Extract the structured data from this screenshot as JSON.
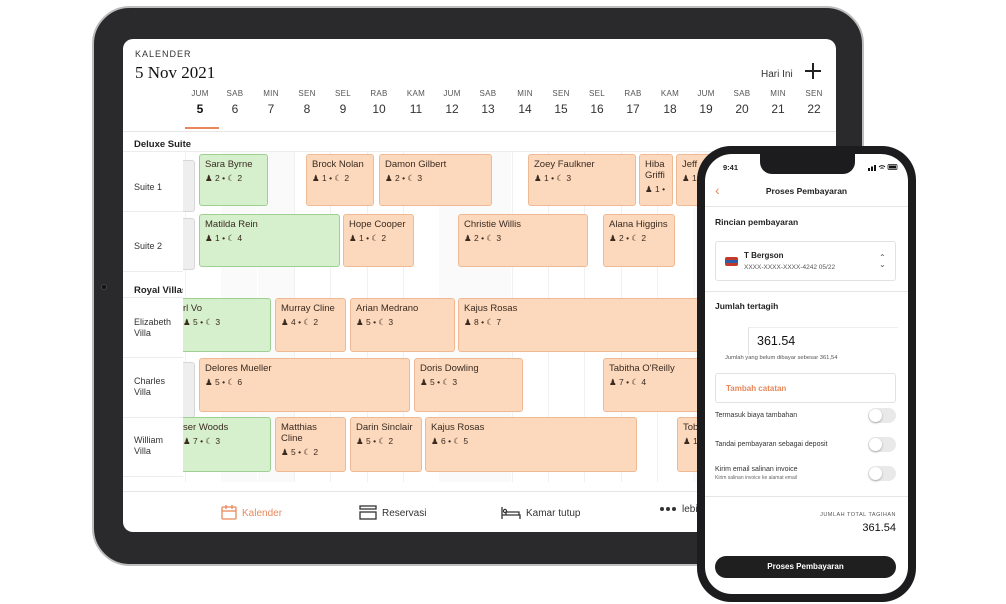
{
  "calendar": {
    "label": "KALENDER",
    "date": "5 Nov 2021",
    "today_button": "Hari Ini",
    "days": [
      {
        "dow": "JUM",
        "num": "5"
      },
      {
        "dow": "SAB",
        "num": "6"
      },
      {
        "dow": "MIN",
        "num": "7"
      },
      {
        "dow": "SEN",
        "num": "8"
      },
      {
        "dow": "SEL",
        "num": "9"
      },
      {
        "dow": "RAB",
        "num": "10"
      },
      {
        "dow": "KAM",
        "num": "11"
      },
      {
        "dow": "JUM",
        "num": "12"
      },
      {
        "dow": "SAB",
        "num": "13"
      },
      {
        "dow": "MIN",
        "num": "14"
      },
      {
        "dow": "SEN",
        "num": "15"
      },
      {
        "dow": "SEL",
        "num": "16"
      },
      {
        "dow": "RAB",
        "num": "17"
      },
      {
        "dow": "KAM",
        "num": "18"
      },
      {
        "dow": "JUM",
        "num": "19"
      },
      {
        "dow": "SAB",
        "num": "20"
      },
      {
        "dow": "MIN",
        "num": "21"
      },
      {
        "dow": "SEN",
        "num": "22"
      }
    ],
    "groups": [
      "Deluxe Suite",
      "Royal Villas"
    ],
    "rooms": [
      "Suite 1",
      "Suite 2",
      "Elizabeth Villa",
      "Charles Villa",
      "William Villa"
    ],
    "bookings": [
      {
        "name": "Sara Byrne",
        "guests": "2",
        "nights": "2"
      },
      {
        "name": "Brock Nolan",
        "guests": "1",
        "nights": "2"
      },
      {
        "name": "Damon Gilbert",
        "guests": "2",
        "nights": "3"
      },
      {
        "name": "Zoey Faulkner",
        "guests": "1",
        "nights": "3"
      },
      {
        "name": "Hiba Griffi",
        "guests": "1",
        "nights": ""
      },
      {
        "name": "Jeff",
        "guests": "1",
        "nights": ""
      },
      {
        "name": "Matilda Rein",
        "guests": "1",
        "nights": "4"
      },
      {
        "name": "Hope Cooper",
        "guests": "1",
        "nights": "2"
      },
      {
        "name": "Christie Willis",
        "guests": "2",
        "nights": "3"
      },
      {
        "name": "Alana Higgins",
        "guests": "2",
        "nights": "2"
      },
      {
        "name": "rl Vo",
        "guests": "5",
        "nights": "3"
      },
      {
        "name": "Murray Cline",
        "guests": "4",
        "nights": "2"
      },
      {
        "name": "Arian Medrano",
        "guests": "5",
        "nights": "3"
      },
      {
        "name": "Kajus Rosas",
        "guests": "8",
        "nights": "7"
      },
      {
        "name": "Delores Mueller",
        "guests": "5",
        "nights": "6"
      },
      {
        "name": "Doris Dowling",
        "guests": "5",
        "nights": "3"
      },
      {
        "name": "Tabitha O'Reilly",
        "guests": "7",
        "nights": "4"
      },
      {
        "name": "ser Woods",
        "guests": "7",
        "nights": "3"
      },
      {
        "name": "Matthias Cline",
        "guests": "5",
        "nights": "2"
      },
      {
        "name": "Darin Sinclair",
        "guests": "5",
        "nights": "2"
      },
      {
        "name": "Kajus Rosas",
        "guests": "6",
        "nights": "5"
      },
      {
        "name": "Tob",
        "guests": "1",
        "nights": ""
      }
    ]
  },
  "nav": {
    "calendar": "Kalender",
    "reservations": "Reservasi",
    "closed_rooms": "Kamar tutup",
    "more": "lebi"
  },
  "phone": {
    "time": "9:41",
    "title": "Proses Pembayaran",
    "payment_details": "Rincian pembayaran",
    "card_name": "T Bergson",
    "card_number": "XXXX-XXXX-XXXX-4242",
    "card_exp": "05/22",
    "amount_label": "Jumlah tertagih",
    "amount": "361.54",
    "amount_note": "Jumlah yang belum dibayar sebesar 361,54",
    "add_note": "Tambah catatan",
    "toggle_extra": "Termasuk biaya tambahan",
    "toggle_deposit": "Tandai pembayaran sebagai deposit",
    "toggle_email": "Kirim email salinan invoice",
    "toggle_email_sub": "Kirim salinan invoice ke alamat email",
    "total_label": "JUMLAH TOTAL TAGIHAN",
    "total": "361.54",
    "pay_button": "Proses Pembayaran"
  },
  "colors": {
    "accent": "#e8885a",
    "booking": "#fcd9bd",
    "checked_in": "#d6f0cd"
  }
}
